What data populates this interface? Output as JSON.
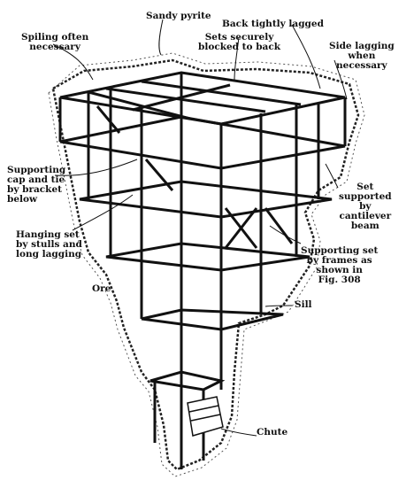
{
  "labels": {
    "sandy_pyrite": "Sandy pyrite",
    "back_lagged": "Back tightly lagged",
    "spiling": "Spiling often\nnecessary",
    "sets_blocked": "Sets securely\nblocked to back",
    "side_lagging": "Side lagging\nwhen\nnecessary",
    "supporting_cap": "Supporting\ncap and tie\nby bracket\nbelow",
    "set_supported": "Set\nsupported\nby\ncantilever\nbeam",
    "hanging_set": "Hanging set\nby stulls and\nlong lagging",
    "supporting_set": "Supporting set\nby frames as\nshown in\nFig. 308",
    "ore": "Ore",
    "sill": "Sill",
    "chute": "Chute"
  }
}
